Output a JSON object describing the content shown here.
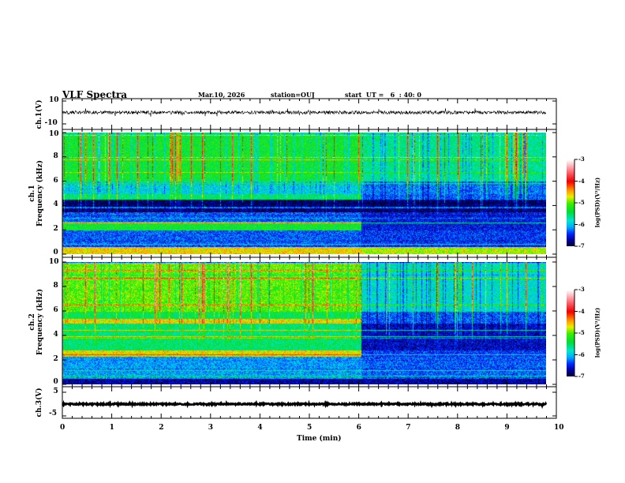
{
  "header": {
    "title": "VLF Spectra",
    "date": "Mar.10, 2026",
    "station": "station=OUJ",
    "start": "start  UT =   6  : 40: 0"
  },
  "colors": {
    "axis": "#000000",
    "background": "#ffffff"
  },
  "chart_data": [
    {
      "type": "line",
      "name": "ch1 waveform",
      "ylabel": "ch.1(V)",
      "ylim": [
        -10,
        10
      ],
      "yticks": [
        "10",
        "-10"
      ],
      "xlim": [
        0,
        10
      ],
      "data_end_min": 9.8,
      "mean": 0,
      "amplitude": 1.5
    },
    {
      "type": "heatmap",
      "name": "ch1 spectrogram",
      "ylabel": "ch.1\nFrequency  (kHz)",
      "ylim": [
        0,
        10
      ],
      "yticks": [
        "0",
        "2",
        "4",
        "6",
        "8",
        "10"
      ],
      "xlim": [
        0,
        10
      ],
      "data_end_min": 9.8,
      "colorbar": {
        "label": "log(PSD)(V²/Hz)",
        "range": [
          -7,
          -3
        ],
        "ticks": [
          "-3",
          "-4",
          "-5",
          "-6",
          "-7"
        ]
      },
      "bands": [
        {
          "fmin": 6.0,
          "fmax": 10.0,
          "before_6min": -5.3,
          "after_6min": -5.6
        },
        {
          "fmin": 5.0,
          "fmax": 6.0,
          "before_6min": -5.9,
          "after_6min": -6.2
        },
        {
          "fmin": 4.5,
          "fmax": 5.0,
          "before_6min": -5.5,
          "after_6min": -6.3
        },
        {
          "fmin": 3.5,
          "fmax": 4.5,
          "before_6min": -6.8,
          "after_6min": -6.8
        },
        {
          "fmin": 2.7,
          "fmax": 3.5,
          "before_6min": -6.3,
          "after_6min": -6.5
        },
        {
          "fmin": 2.0,
          "fmax": 2.7,
          "before_6min": -5.3,
          "after_6min": -6.5
        },
        {
          "fmin": 0.6,
          "fmax": 2.0,
          "before_6min": -6.3,
          "after_6min": -6.4
        },
        {
          "fmin": 0.0,
          "fmax": 0.6,
          "before_6min": -4.6,
          "after_6min": -4.8
        }
      ]
    },
    {
      "type": "heatmap",
      "name": "ch2 spectrogram",
      "ylabel": "ch.2\nFrequency  (kHz)",
      "ylim": [
        0,
        10
      ],
      "yticks": [
        "0",
        "2",
        "4",
        "6",
        "8",
        "10"
      ],
      "xlim": [
        0,
        10
      ],
      "data_end_min": 9.8,
      "colorbar": {
        "label": "log(PSD)(V²/Hz)",
        "range": [
          -7,
          -3
        ],
        "ticks": [
          "-3",
          "-4",
          "-5",
          "-6",
          "-7"
        ]
      },
      "bands": [
        {
          "fmin": 6.0,
          "fmax": 10.0,
          "before_6min": -5.0,
          "after_6min": -5.8
        },
        {
          "fmin": 5.4,
          "fmax": 6.0,
          "before_6min": -5.4,
          "after_6min": -6.3
        },
        {
          "fmin": 5.0,
          "fmax": 5.4,
          "before_6min": -4.6,
          "after_6min": -6.3
        },
        {
          "fmin": 2.8,
          "fmax": 5.0,
          "before_6min": -5.5,
          "after_6min": -6.6
        },
        {
          "fmin": 2.3,
          "fmax": 2.8,
          "before_6min": -4.6,
          "after_6min": -6.4
        },
        {
          "fmin": 0.5,
          "fmax": 2.3,
          "before_6min": -6.1,
          "after_6min": -6.3
        },
        {
          "fmin": 0.0,
          "fmax": 0.5,
          "before_6min": -6.7,
          "after_6min": -6.7
        }
      ]
    },
    {
      "type": "line",
      "name": "ch3 waveform",
      "ylabel": "ch.3(V)",
      "ylim": [
        -5,
        5
      ],
      "yticks": [
        "5",
        "-5"
      ],
      "xlim": [
        0,
        10
      ],
      "data_end_min": 9.8,
      "mean": 0,
      "amplitude": 0.3
    }
  ],
  "xaxis": {
    "label": "Time  (min)",
    "ticks": [
      "0",
      "1",
      "2",
      "3",
      "4",
      "5",
      "6",
      "7",
      "8",
      "9",
      "10"
    ]
  }
}
